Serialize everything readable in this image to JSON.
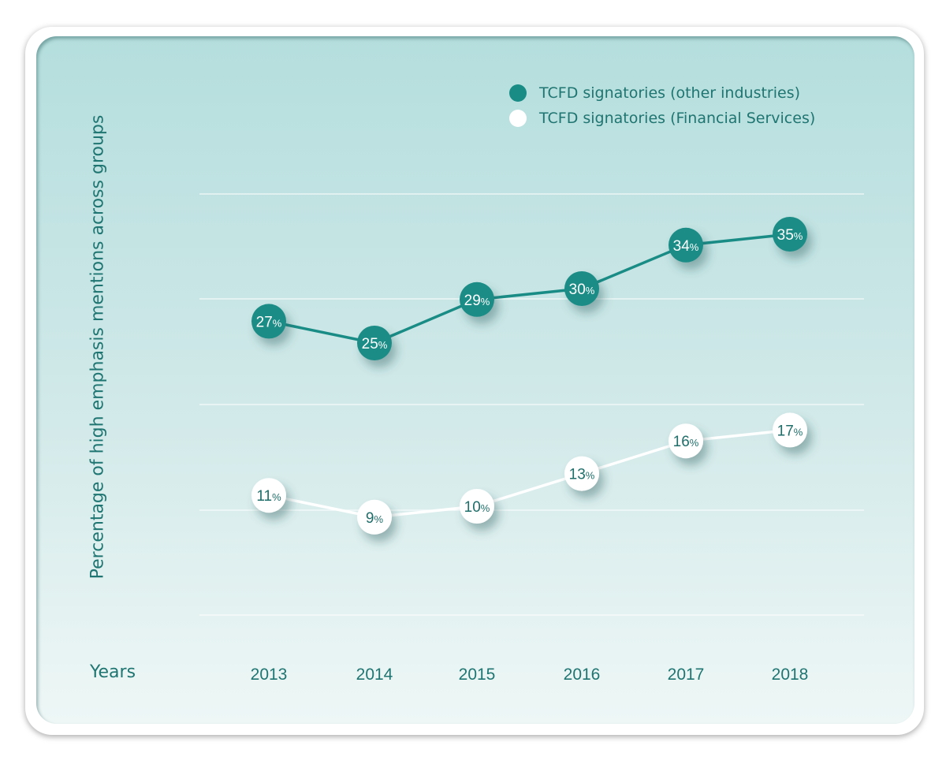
{
  "chart_data": {
    "type": "line",
    "ylabel": "Percentage of high emphasis mentions across groups",
    "xlabel": "Years",
    "categories": [
      "2013",
      "2014",
      "2015",
      "2016",
      "2017",
      "2018"
    ],
    "ylim": [
      0,
      35
    ],
    "grid": true,
    "legend_position": "top-right",
    "series": [
      {
        "name": "TCFD signatories (other industries)",
        "values": [
          27,
          25,
          29,
          30,
          34,
          35
        ],
        "labels": [
          "27",
          "25",
          "29",
          "30",
          "34",
          "35"
        ],
        "color": "#1a8c86"
      },
      {
        "name": "TCFD signatories (Financial Services)",
        "values": [
          11,
          9,
          10,
          13,
          16,
          17
        ],
        "labels": [
          "11",
          "9",
          "10",
          "13",
          "16",
          "17"
        ],
        "color": "#ffffff"
      }
    ],
    "value_suffix": "%"
  },
  "colors": {
    "text": "#1f7571",
    "teal": "#1a8c86"
  }
}
